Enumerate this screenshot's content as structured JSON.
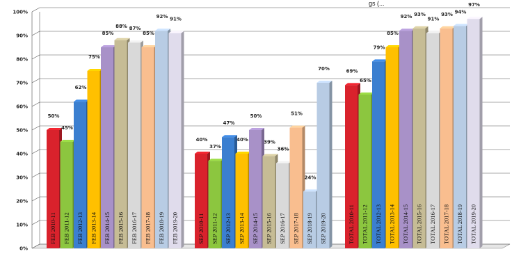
{
  "chart_data": {
    "type": "bar",
    "title_fragment": "gs (...",
    "ylim": [
      0,
      100
    ],
    "y_ticks": [
      "0%",
      "10%",
      "20%",
      "30%",
      "40%",
      "50%",
      "60%",
      "70%",
      "80%",
      "90%",
      "100%"
    ],
    "grid": true,
    "groups": [
      {
        "name": "FEB",
        "bars": [
          {
            "label": "FEB 2010-11",
            "value": 50,
            "value_label": "50%",
            "color": "#d9222c"
          },
          {
            "label": "FEB 2011-12",
            "value": 45,
            "value_label": "45%",
            "color": "#8cc63f"
          },
          {
            "label": "FEB 2012-13",
            "value": 62,
            "value_label": "62%",
            "color": "#3b7fd0"
          },
          {
            "label": "FEB 2013-14",
            "value": 75,
            "value_label": "75%",
            "color": "#ffc000"
          },
          {
            "label": "FEB 2014-15",
            "value": 85,
            "value_label": "85%",
            "color": "#a891c8"
          },
          {
            "label": "FEB 2015-16",
            "value": 88,
            "value_label": "88%",
            "color": "#c6bc95"
          },
          {
            "label": "FEB 2016-17",
            "value": 87,
            "value_label": "87%",
            "color": "#d9d9d9"
          },
          {
            "label": "FEB 2017-18",
            "value": 85,
            "value_label": "85%",
            "color": "#f9be8f"
          },
          {
            "label": "FEB 2018-19",
            "value": 92,
            "value_label": "92%",
            "color": "#b8cce4"
          },
          {
            "label": "FEB 2019-20",
            "value": 91,
            "value_label": "91%",
            "color": "#e0dcec"
          }
        ]
      },
      {
        "name": "SEP",
        "bars": [
          {
            "label": "SEP 2010-11",
            "value": 40,
            "value_label": "40%",
            "color": "#d9222c"
          },
          {
            "label": "SEP 2011-12",
            "value": 37,
            "value_label": "37%",
            "color": "#8cc63f"
          },
          {
            "label": "SEP 2012-13",
            "value": 47,
            "value_label": "47%",
            "color": "#3b7fd0"
          },
          {
            "label": "SEP 2013-14",
            "value": 40,
            "value_label": "40%",
            "color": "#ffc000"
          },
          {
            "label": "SEP 2014-15",
            "value": 50,
            "value_label": "50%",
            "color": "#a891c8"
          },
          {
            "label": "SEP 2015-16",
            "value": 39,
            "value_label": "39%",
            "color": "#c6bc95"
          },
          {
            "label": "SEP 2016-17",
            "value": 36,
            "value_label": "36%",
            "color": "#d9d9d9"
          },
          {
            "label": "SEP 2017-18",
            "value": 51,
            "value_label": "51%",
            "color": "#f9be8f"
          },
          {
            "label": "SEP 2018-19",
            "value": 24,
            "value_label": "24%",
            "color": "#b8cce4"
          },
          {
            "label": "SEP 2019-20",
            "value": 70,
            "value_label": "70%",
            "color": "#b8cce4"
          }
        ]
      },
      {
        "name": "TOTAL",
        "bars": [
          {
            "label": "TOTAL 2010-11",
            "value": 69,
            "value_label": "69%",
            "color": "#d9222c"
          },
          {
            "label": "TOTAL 2011-12",
            "value": 65,
            "value_label": "65%",
            "color": "#8cc63f"
          },
          {
            "label": "TOTAL 2012-13",
            "value": 79,
            "value_label": "79%",
            "color": "#3b7fd0"
          },
          {
            "label": "TOTAL 2013-14",
            "value": 85,
            "value_label": "85%",
            "color": "#ffc000"
          },
          {
            "label": "TOTAL 2014-15",
            "value": 92,
            "value_label": "92%",
            "color": "#a891c8"
          },
          {
            "label": "TOTAL 2015-16",
            "value": 93,
            "value_label": "93%",
            "color": "#c6bc95"
          },
          {
            "label": "TOTAL 2016-17",
            "value": 91,
            "value_label": "91%",
            "color": "#d9d9d9"
          },
          {
            "label": "TOTAL 2017-18",
            "value": 93,
            "value_label": "93%",
            "color": "#f9be8f"
          },
          {
            "label": "TOTAL 2018-19",
            "value": 94,
            "value_label": "94%",
            "color": "#b8cce4"
          },
          {
            "label": "TOTAL 2019-20",
            "value": 97,
            "value_label": "97%",
            "color": "#e0dcec"
          }
        ]
      }
    ]
  }
}
